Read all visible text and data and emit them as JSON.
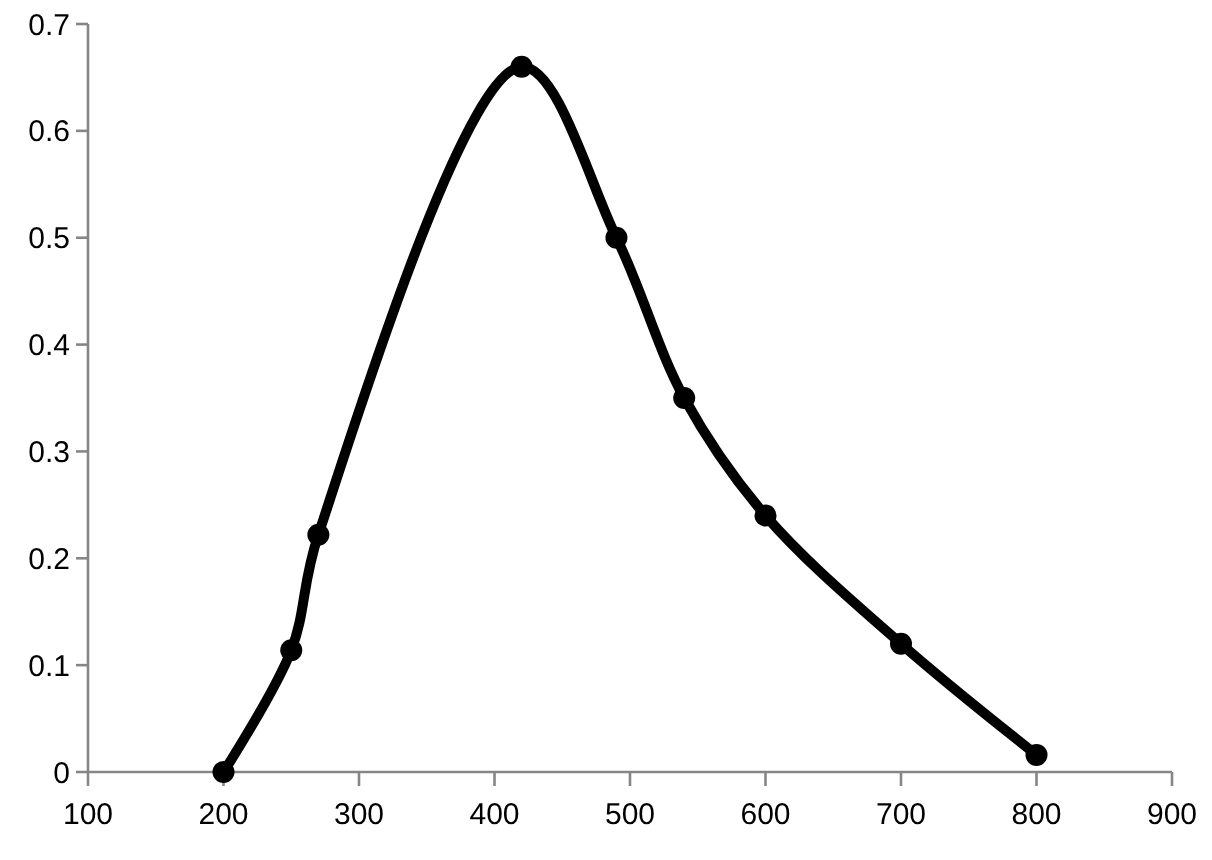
{
  "chart_data": {
    "type": "line",
    "x": [
      200,
      250,
      270,
      420,
      490,
      540,
      600,
      700,
      800
    ],
    "values": [
      0,
      0.114,
      0.222,
      0.66,
      0.5,
      0.35,
      0.24,
      0.12,
      0.016
    ],
    "color": "#000000",
    "xlim": [
      100,
      900
    ],
    "xticks": [
      100,
      200,
      300,
      400,
      500,
      600,
      700,
      800,
      900
    ],
    "ylim": [
      0,
      0.7
    ],
    "yticks": [
      0,
      0.1,
      0.2,
      0.3,
      0.4,
      0.5,
      0.6,
      0.7
    ],
    "marker": "circle",
    "line_style": "solid"
  }
}
